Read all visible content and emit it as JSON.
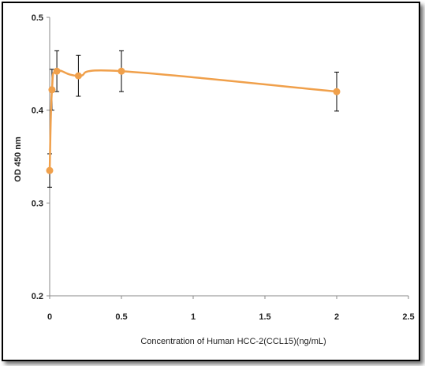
{
  "chart_data": {
    "type": "line",
    "title": "",
    "xlabel": "Concentration of Human HCC-2(CCL15)(ng/mL)",
    "ylabel": "OD 450 nm",
    "xlim": [
      0,
      2.5
    ],
    "ylim": [
      0.2,
      0.5
    ],
    "x_ticks": [
      "0",
      "0.5",
      "1",
      "1.5",
      "2",
      "2.5"
    ],
    "y_ticks": [
      "0.2",
      "0.3",
      "0.4",
      "0.5"
    ],
    "grid": false,
    "series": [
      {
        "color": "#f0a04b",
        "x": [
          0,
          0.016,
          0.05,
          0.2,
          0.5,
          2
        ],
        "y": [
          0.335,
          0.422,
          0.442,
          0.437,
          0.442,
          0.42
        ],
        "error": [
          0.018,
          0.022,
          0.022,
          0.022,
          0.022,
          0.021
        ]
      }
    ]
  }
}
